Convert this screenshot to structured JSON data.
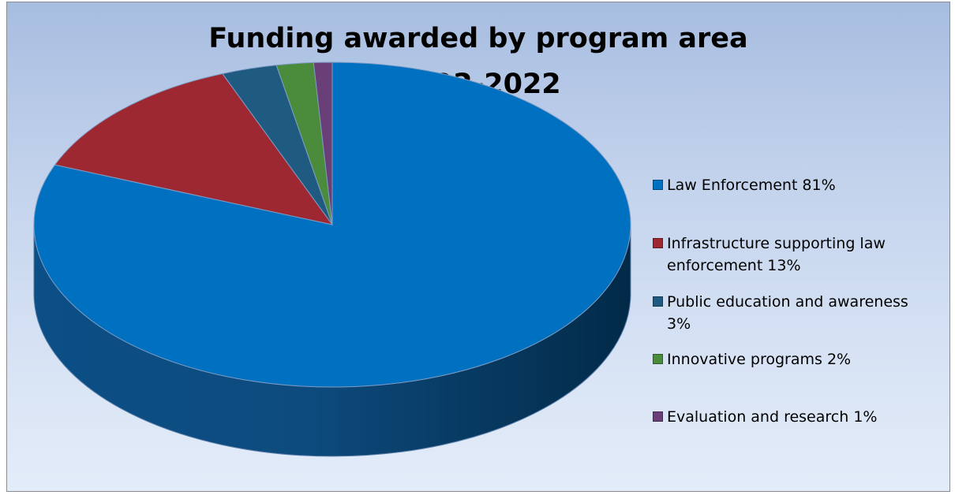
{
  "chart_data": {
    "type": "pie",
    "style": "3d",
    "title_lines": [
      "Funding awarded by program area",
      "1992-2022"
    ],
    "legend_position": "right",
    "slices": [
      {
        "label": "Law Enforcement 81%",
        "value": 81,
        "color": "#0070c0"
      },
      {
        "label": "Infrastructure supporting law enforcement 13%",
        "value": 13,
        "color": "#9e2832"
      },
      {
        "label": "Public education and awareness 3%",
        "value": 3,
        "color": "#1f5a80"
      },
      {
        "label": "Innovative programs 2%",
        "value": 2,
        "color": "#4a8c3c"
      },
      {
        "label": "Evaluation and research 1%",
        "value": 1,
        "color": "#6a3f78"
      }
    ]
  }
}
